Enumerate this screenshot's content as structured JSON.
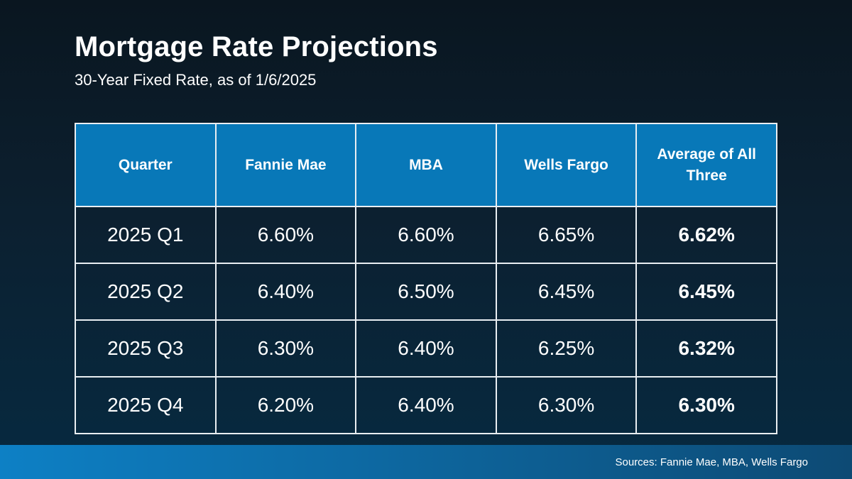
{
  "slide": {
    "title": "Mortgage Rate Projections",
    "subtitle": "30-Year Fixed Rate, as of 1/6/2025",
    "sources": "Sources: Fannie Mae, MBA, Wells Fargo"
  },
  "chart_data": {
    "type": "table",
    "title": "Mortgage Rate Projections",
    "subtitle": "30-Year Fixed Rate, as of 1/6/2025",
    "columns": [
      "Quarter",
      "Fannie Mae",
      "MBA",
      "Wells Fargo",
      "Average of All Three"
    ],
    "rows": [
      [
        "2025 Q1",
        "6.60%",
        "6.60%",
        "6.65%",
        "6.62%"
      ],
      [
        "2025 Q2",
        "6.40%",
        "6.50%",
        "6.45%",
        "6.45%"
      ],
      [
        "2025 Q3",
        "6.30%",
        "6.40%",
        "6.25%",
        "6.32%"
      ],
      [
        "2025 Q4",
        "6.20%",
        "6.40%",
        "6.30%",
        "6.30%"
      ]
    ],
    "source_note": "Sources: Fannie Mae, MBA, Wells Fargo"
  },
  "colors": {
    "background_top": "#0a1620",
    "background_bottom": "#062a41",
    "header_bg": "#0878b8",
    "border": "#e9eef2",
    "footer_left": "#0d80c5",
    "footer_right": "#0d4a74",
    "text": "#ffffff"
  }
}
